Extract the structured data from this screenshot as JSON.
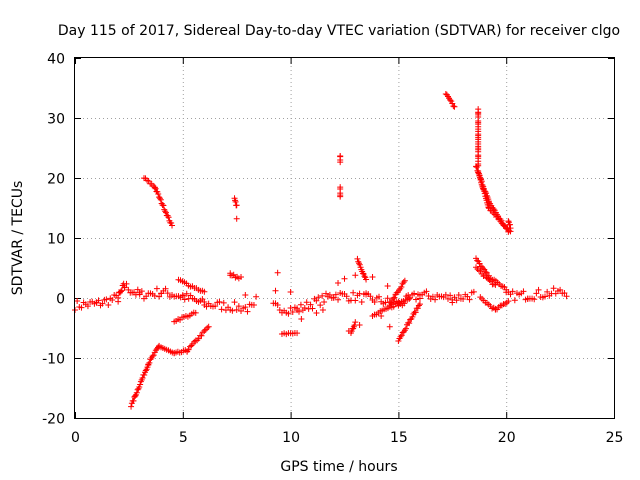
{
  "chart_data": {
    "type": "scatter",
    "title": "Day 115 of 2017, Sidereal Day-to-day VTEC variation (SDTVAR) for receiver clgo",
    "xlabel": "GPS time / hours",
    "ylabel": "SDTVAR / TECUs",
    "xlim": [
      0,
      25
    ],
    "ylim": [
      -20,
      40
    ],
    "xticks": [
      0,
      5,
      10,
      15,
      20,
      25
    ],
    "yticks": [
      -20,
      -10,
      0,
      10,
      20,
      30,
      40
    ],
    "grid": true,
    "marker": "+",
    "color": "#ff0000",
    "series": [
      {
        "name": "baseline",
        "segments": [
          {
            "x0": 0.0,
            "y0": -1.2,
            "x1": 1.0,
            "y1": -1.0
          },
          {
            "x0": 1.0,
            "y0": -1.0,
            "x1": 2.0,
            "y1": 0.0
          },
          {
            "x0": 2.0,
            "y0": 0.0,
            "x1": 2.3,
            "y1": 2.0
          },
          {
            "x0": 2.3,
            "y0": 2.0,
            "x1": 3.0,
            "y1": 0.5
          },
          {
            "x0": 3.0,
            "y0": 0.5,
            "x1": 4.0,
            "y1": 1.0
          },
          {
            "x0": 4.0,
            "y0": 1.0,
            "x1": 5.0,
            "y1": 0.3
          },
          {
            "x0": 5.0,
            "y0": 0.3,
            "x1": 6.0,
            "y1": -1.0
          },
          {
            "x0": 6.0,
            "y0": -1.0,
            "x1": 8.3,
            "y1": -1.8
          },
          {
            "x0": 9.2,
            "y0": -1.5,
            "x1": 10.3,
            "y1": -2.0
          },
          {
            "x0": 10.3,
            "y0": -2.0,
            "x1": 12.0,
            "y1": 0.5
          },
          {
            "x0": 12.0,
            "y0": 0.5,
            "x1": 13.5,
            "y1": 0.0
          },
          {
            "x0": 13.5,
            "y0": 0.0,
            "x1": 15.0,
            "y1": -1.0
          },
          {
            "x0": 15.0,
            "y0": -1.0,
            "x1": 16.0,
            "y1": 0.5
          },
          {
            "x0": 16.0,
            "y0": 0.5,
            "x1": 17.5,
            "y1": 0.0
          },
          {
            "x0": 17.5,
            "y0": 0.0,
            "x1": 18.5,
            "y1": 0.5
          },
          {
            "x0": 20.0,
            "y0": 0.3,
            "x1": 21.0,
            "y1": 0.5
          },
          {
            "x0": 21.0,
            "y0": 0.5,
            "x1": 22.8,
            "y1": 1.0
          }
        ]
      },
      {
        "name": "tracks",
        "segments": [
          {
            "x0": 2.6,
            "y0": -18.0,
            "x1": 3.4,
            "y1": -11.0
          },
          {
            "x0": 3.4,
            "y0": -11.0,
            "x1": 3.9,
            "y1": -8.0
          },
          {
            "x0": 3.9,
            "y0": -8.0,
            "x1": 4.6,
            "y1": -9.3
          },
          {
            "x0": 4.6,
            "y0": -9.3,
            "x1": 5.2,
            "y1": -8.8
          },
          {
            "x0": 5.2,
            "y0": -8.8,
            "x1": 6.2,
            "y1": -4.8
          },
          {
            "x0": 3.2,
            "y0": 20.0,
            "x1": 3.7,
            "y1": 18.5
          },
          {
            "x0": 3.7,
            "y0": 18.5,
            "x1": 4.5,
            "y1": 12.0
          },
          {
            "x0": 4.6,
            "y0": -3.8,
            "x1": 5.6,
            "y1": -2.5
          },
          {
            "x0": 4.8,
            "y0": 3.0,
            "x1": 6.0,
            "y1": 1.0
          },
          {
            "x0": 7.2,
            "y0": 4.0,
            "x1": 7.6,
            "y1": 3.3
          },
          {
            "x0": 7.4,
            "y0": 16.5,
            "x1": 7.5,
            "y1": 15.3
          },
          {
            "x0": 9.6,
            "y0": -6.0,
            "x1": 10.3,
            "y1": -6.0
          },
          {
            "x0": 12.3,
            "y0": 23.8,
            "x1": 12.3,
            "y1": 22.8
          },
          {
            "x0": 12.3,
            "y0": 18.3,
            "x1": 12.3,
            "y1": 17.0
          },
          {
            "x0": 12.8,
            "y0": -6.0,
            "x1": 13.0,
            "y1": -4.0
          },
          {
            "x0": 13.1,
            "y0": 6.5,
            "x1": 13.5,
            "y1": 3.0
          },
          {
            "x0": 13.8,
            "y0": -3.0,
            "x1": 15.5,
            "y1": 0.0
          },
          {
            "x0": 15.0,
            "y0": -7.0,
            "x1": 16.0,
            "y1": -1.0
          },
          {
            "x0": 14.6,
            "y0": -1.0,
            "x1": 15.3,
            "y1": 2.8
          },
          {
            "x0": 17.2,
            "y0": 34.0,
            "x1": 17.6,
            "y1": 31.8
          },
          {
            "x0": 18.6,
            "y0": 22.0,
            "x1": 19.2,
            "y1": 16.0
          },
          {
            "x0": 19.2,
            "y0": 16.0,
            "x1": 20.1,
            "y1": 11.0
          },
          {
            "x0": 18.7,
            "y0": 21.0,
            "x1": 19.2,
            "y1": 15.0
          },
          {
            "x0": 19.2,
            "y0": 15.0,
            "x1": 20.2,
            "y1": 11.0
          },
          {
            "x0": 18.6,
            "y0": 6.5,
            "x1": 19.2,
            "y1": 3.5
          },
          {
            "x0": 19.2,
            "y0": 3.5,
            "x1": 20.0,
            "y1": 1.5
          },
          {
            "x0": 18.6,
            "y0": 5.0,
            "x1": 19.5,
            "y1": 2.0
          },
          {
            "x0": 18.8,
            "y0": 0.0,
            "x1": 19.5,
            "y1": -2.0
          },
          {
            "x0": 19.5,
            "y0": -2.0,
            "x1": 20.1,
            "y1": -0.5
          },
          {
            "x0": 18.7,
            "y0": 31.5,
            "x1": 18.7,
            "y1": 22.0
          },
          {
            "x0": 20.1,
            "y0": 13.0,
            "x1": 20.2,
            "y1": 11.8
          }
        ]
      },
      {
        "name": "scatter-points",
        "points": [
          [
            7.5,
            13.2
          ],
          [
            7.2,
            3.8
          ],
          [
            7.7,
            3.5
          ],
          [
            7.9,
            0.5
          ],
          [
            8.4,
            0.2
          ],
          [
            9.4,
            4.2
          ],
          [
            9.3,
            1.2
          ],
          [
            10.0,
            1.0
          ],
          [
            10.5,
            -3.5
          ],
          [
            11.2,
            -2.5
          ],
          [
            11.5,
            -2.0
          ],
          [
            12.2,
            2.5
          ],
          [
            12.5,
            3.2
          ],
          [
            13.0,
            3.8
          ],
          [
            13.8,
            3.5
          ],
          [
            14.2,
            -3.0
          ],
          [
            14.5,
            2.0
          ],
          [
            13.2,
            -4.5
          ],
          [
            12.7,
            -5.5
          ],
          [
            14.6,
            -4.8
          ]
        ]
      }
    ]
  }
}
